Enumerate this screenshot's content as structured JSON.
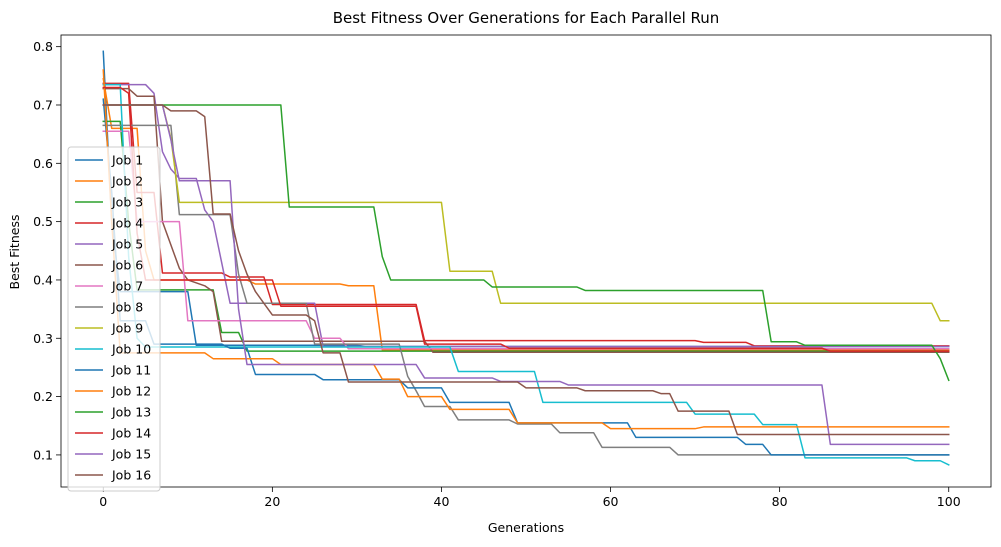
{
  "chart_data": {
    "type": "line",
    "title": "Best Fitness Over Generations for Each Parallel Run",
    "xlabel": "Generations",
    "ylabel": "Best Fitness",
    "xlim": [
      -5,
      105
    ],
    "ylim": [
      0.045,
      0.82
    ],
    "xticks": [
      0,
      20,
      40,
      60,
      80,
      100
    ],
    "yticks": [
      0.1,
      0.2,
      0.3,
      0.4,
      0.5,
      0.6,
      0.7,
      0.8
    ],
    "xtick_labels": [
      "0",
      "20",
      "40",
      "60",
      "80",
      "100"
    ],
    "ytick_labels": [
      "0.1",
      "0.2",
      "0.3",
      "0.4",
      "0.5",
      "0.6",
      "0.7",
      "0.8"
    ],
    "legend_position": "center-left",
    "series": [
      {
        "name": "Job 1",
        "color": "#1f77b4",
        "points": [
          [
            0,
            0.792
          ],
          [
            1,
            0.5
          ],
          [
            2,
            0.38
          ],
          [
            10,
            0.38
          ],
          [
            11,
            0.288
          ],
          [
            30,
            0.288
          ],
          [
            31,
            0.286
          ],
          [
            100,
            0.286
          ]
        ]
      },
      {
        "name": "Job 2",
        "color": "#ff7f0e",
        "points": [
          [
            0,
            0.745
          ],
          [
            1,
            0.66
          ],
          [
            4,
            0.66
          ],
          [
            5,
            0.45
          ],
          [
            6,
            0.4
          ],
          [
            17,
            0.4
          ],
          [
            18,
            0.393
          ],
          [
            28,
            0.393
          ],
          [
            29,
            0.39
          ],
          [
            32,
            0.39
          ],
          [
            33,
            0.28
          ],
          [
            100,
            0.28
          ]
        ]
      },
      {
        "name": "Job 3",
        "color": "#2ca02c",
        "points": [
          [
            0,
            0.672
          ],
          [
            2,
            0.672
          ],
          [
            3,
            0.5
          ],
          [
            4,
            0.383
          ],
          [
            13,
            0.383
          ],
          [
            14,
            0.31
          ],
          [
            16,
            0.31
          ],
          [
            17,
            0.278
          ],
          [
            100,
            0.278
          ]
        ]
      },
      {
        "name": "Job 4",
        "color": "#d62728",
        "points": [
          [
            0,
            0.737
          ],
          [
            3,
            0.737
          ],
          [
            4,
            0.55
          ],
          [
            6,
            0.55
          ],
          [
            7,
            0.412
          ],
          [
            14,
            0.412
          ],
          [
            15,
            0.405
          ],
          [
            19,
            0.405
          ],
          [
            20,
            0.358
          ],
          [
            37,
            0.358
          ],
          [
            38,
            0.296
          ],
          [
            70,
            0.296
          ],
          [
            71,
            0.293
          ],
          [
            76,
            0.293
          ],
          [
            77,
            0.287
          ],
          [
            100,
            0.287
          ]
        ]
      },
      {
        "name": "Job 5",
        "color": "#9467bd",
        "points": [
          [
            0,
            0.735
          ],
          [
            5,
            0.735
          ],
          [
            6,
            0.72
          ],
          [
            7,
            0.62
          ],
          [
            8,
            0.59
          ],
          [
            9,
            0.574
          ],
          [
            11,
            0.574
          ],
          [
            12,
            0.52
          ],
          [
            13,
            0.5
          ],
          [
            14,
            0.43
          ],
          [
            15,
            0.36
          ],
          [
            25,
            0.36
          ],
          [
            26,
            0.286
          ],
          [
            100,
            0.286
          ]
        ]
      },
      {
        "name": "Job 6",
        "color": "#8c564b",
        "points": [
          [
            0,
            0.728
          ],
          [
            3,
            0.728
          ],
          [
            4,
            0.715
          ],
          [
            6,
            0.715
          ],
          [
            7,
            0.5
          ],
          [
            9,
            0.42
          ],
          [
            10,
            0.4
          ],
          [
            12,
            0.39
          ],
          [
            13,
            0.38
          ],
          [
            14,
            0.295
          ],
          [
            38,
            0.295
          ],
          [
            39,
            0.276
          ],
          [
            100,
            0.276
          ]
        ]
      },
      {
        "name": "Job 7",
        "color": "#e377c2",
        "points": [
          [
            0,
            0.655
          ],
          [
            3,
            0.655
          ],
          [
            4,
            0.5
          ],
          [
            9,
            0.5
          ],
          [
            10,
            0.33
          ],
          [
            24,
            0.33
          ],
          [
            25,
            0.3
          ],
          [
            28,
            0.3
          ],
          [
            29,
            0.282
          ],
          [
            100,
            0.282
          ]
        ]
      },
      {
        "name": "Job 8",
        "color": "#7f7f7f",
        "points": [
          [
            0,
            0.665
          ],
          [
            8,
            0.665
          ],
          [
            9,
            0.512
          ],
          [
            15,
            0.512
          ],
          [
            16,
            0.41
          ],
          [
            17,
            0.36
          ],
          [
            24,
            0.36
          ],
          [
            25,
            0.29
          ],
          [
            35,
            0.29
          ],
          [
            36,
            0.235
          ],
          [
            37,
            0.21
          ],
          [
            38,
            0.183
          ],
          [
            41,
            0.183
          ],
          [
            42,
            0.16
          ],
          [
            48,
            0.16
          ],
          [
            49,
            0.153
          ],
          [
            53,
            0.153
          ],
          [
            54,
            0.138
          ],
          [
            58,
            0.138
          ],
          [
            59,
            0.113
          ],
          [
            67,
            0.113
          ],
          [
            68,
            0.1
          ],
          [
            100,
            0.1
          ]
        ]
      },
      {
        "name": "Job 9",
        "color": "#bcbd22",
        "points": [
          [
            0,
            0.7
          ],
          [
            7,
            0.7
          ],
          [
            8,
            0.643
          ],
          [
            9,
            0.533
          ],
          [
            40,
            0.533
          ],
          [
            41,
            0.415
          ],
          [
            46,
            0.415
          ],
          [
            47,
            0.36
          ],
          [
            98,
            0.36
          ],
          [
            99,
            0.33
          ],
          [
            100,
            0.33
          ]
        ]
      },
      {
        "name": "Job 10",
        "color": "#17becf",
        "points": [
          [
            0,
            0.735
          ],
          [
            2,
            0.735
          ],
          [
            3,
            0.44
          ],
          [
            4,
            0.3
          ],
          [
            5,
            0.285
          ],
          [
            41,
            0.285
          ],
          [
            42,
            0.243
          ],
          [
            51,
            0.243
          ],
          [
            52,
            0.19
          ],
          [
            69,
            0.19
          ],
          [
            70,
            0.17
          ],
          [
            77,
            0.17
          ],
          [
            78,
            0.152
          ],
          [
            82,
            0.152
          ],
          [
            83,
            0.095
          ],
          [
            95,
            0.095
          ],
          [
            96,
            0.09
          ],
          [
            99,
            0.09
          ],
          [
            100,
            0.083
          ]
        ]
      },
      {
        "name": "Job 11",
        "color": "#1f77b4",
        "points": [
          [
            0,
            0.71
          ],
          [
            1,
            0.55
          ],
          [
            2,
            0.33
          ],
          [
            5,
            0.33
          ],
          [
            6,
            0.29
          ],
          [
            14,
            0.29
          ],
          [
            15,
            0.283
          ],
          [
            17,
            0.283
          ],
          [
            18,
            0.238
          ],
          [
            25,
            0.238
          ],
          [
            26,
            0.229
          ],
          [
            35,
            0.229
          ],
          [
            36,
            0.215
          ],
          [
            40,
            0.215
          ],
          [
            41,
            0.19
          ],
          [
            48,
            0.19
          ],
          [
            49,
            0.155
          ],
          [
            62,
            0.155
          ],
          [
            63,
            0.13
          ],
          [
            75,
            0.13
          ],
          [
            76,
            0.118
          ],
          [
            78,
            0.118
          ],
          [
            79,
            0.1
          ],
          [
            100,
            0.1
          ]
        ]
      },
      {
        "name": "Job 12",
        "color": "#ff7f0e",
        "points": [
          [
            0,
            0.76
          ],
          [
            1,
            0.5
          ],
          [
            2,
            0.275
          ],
          [
            12,
            0.275
          ],
          [
            13,
            0.265
          ],
          [
            20,
            0.265
          ],
          [
            21,
            0.255
          ],
          [
            32,
            0.255
          ],
          [
            33,
            0.23
          ],
          [
            35,
            0.23
          ],
          [
            36,
            0.2
          ],
          [
            40,
            0.2
          ],
          [
            41,
            0.178
          ],
          [
            48,
            0.178
          ],
          [
            49,
            0.155
          ],
          [
            59,
            0.155
          ],
          [
            60,
            0.145
          ],
          [
            70,
            0.145
          ],
          [
            71,
            0.148
          ],
          [
            100,
            0.148
          ]
        ]
      },
      {
        "name": "Job 13",
        "color": "#2ca02c",
        "points": [
          [
            0,
            0.7
          ],
          [
            21,
            0.7
          ],
          [
            22,
            0.525
          ],
          [
            32,
            0.525
          ],
          [
            33,
            0.44
          ],
          [
            34,
            0.4
          ],
          [
            45,
            0.4
          ],
          [
            46,
            0.388
          ],
          [
            56,
            0.388
          ],
          [
            57,
            0.382
          ],
          [
            78,
            0.382
          ],
          [
            79,
            0.294
          ],
          [
            82,
            0.294
          ],
          [
            83,
            0.288
          ],
          [
            98,
            0.288
          ],
          [
            99,
            0.265
          ],
          [
            100,
            0.228
          ]
        ]
      },
      {
        "name": "Job 14",
        "color": "#d62728",
        "points": [
          [
            0,
            0.73
          ],
          [
            2,
            0.73
          ],
          [
            3,
            0.72
          ],
          [
            4,
            0.48
          ],
          [
            5,
            0.4
          ],
          [
            20,
            0.4
          ],
          [
            21,
            0.355
          ],
          [
            37,
            0.355
          ],
          [
            38,
            0.29
          ],
          [
            47,
            0.29
          ],
          [
            48,
            0.283
          ],
          [
            85,
            0.283
          ],
          [
            86,
            0.278
          ],
          [
            100,
            0.278
          ]
        ]
      },
      {
        "name": "Job 15",
        "color": "#9467bd",
        "points": [
          [
            0,
            0.7
          ],
          [
            7,
            0.7
          ],
          [
            8,
            0.64
          ],
          [
            9,
            0.57
          ],
          [
            15,
            0.57
          ],
          [
            16,
            0.35
          ],
          [
            17,
            0.255
          ],
          [
            37,
            0.255
          ],
          [
            38,
            0.232
          ],
          [
            46,
            0.232
          ],
          [
            47,
            0.226
          ],
          [
            54,
            0.226
          ],
          [
            55,
            0.22
          ],
          [
            85,
            0.22
          ],
          [
            86,
            0.118
          ],
          [
            100,
            0.118
          ]
        ]
      },
      {
        "name": "Job 16",
        "color": "#8c564b",
        "points": [
          [
            0,
            0.7
          ],
          [
            7,
            0.7
          ],
          [
            8,
            0.69
          ],
          [
            11,
            0.69
          ],
          [
            12,
            0.68
          ],
          [
            13,
            0.513
          ],
          [
            15,
            0.513
          ],
          [
            16,
            0.45
          ],
          [
            17,
            0.41
          ],
          [
            18,
            0.38
          ],
          [
            19,
            0.36
          ],
          [
            20,
            0.34
          ],
          [
            24,
            0.34
          ],
          [
            25,
            0.33
          ],
          [
            26,
            0.275
          ],
          [
            28,
            0.275
          ],
          [
            29,
            0.225
          ],
          [
            49,
            0.225
          ],
          [
            50,
            0.215
          ],
          [
            56,
            0.215
          ],
          [
            57,
            0.21
          ],
          [
            65,
            0.21
          ],
          [
            66,
            0.205
          ],
          [
            67,
            0.205
          ],
          [
            68,
            0.175
          ],
          [
            74,
            0.175
          ],
          [
            75,
            0.135
          ],
          [
            100,
            0.135
          ]
        ]
      }
    ]
  }
}
